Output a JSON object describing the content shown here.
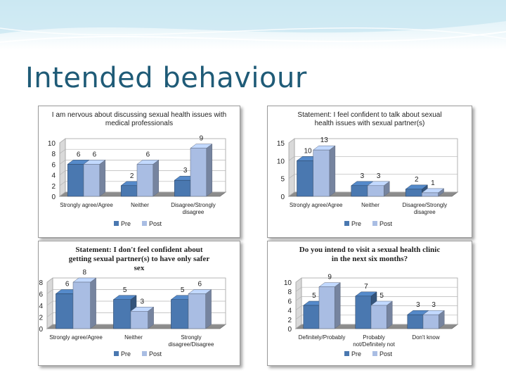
{
  "slide": {
    "title": "Intended behaviour"
  },
  "colors": {
    "pre": "#4a78b0",
    "post": "#a9bde3",
    "wall": "#bfbfbf",
    "floor": "#8c8c8c"
  },
  "chart_data": [
    {
      "type": "bar",
      "title": "I am nervous about discussing sexual health issues with medical professionals",
      "categories": [
        "Strongly agree/Agree",
        "Neither",
        "Disagree/Strongly disagree"
      ],
      "series": [
        {
          "name": "Pre",
          "values": [
            6,
            2,
            3
          ]
        },
        {
          "name": "Post",
          "values": [
            6,
            6,
            9
          ]
        }
      ],
      "ylim": [
        0,
        10
      ],
      "yticks": [
        "0",
        "2",
        "4",
        "6",
        "8",
        "10"
      ],
      "legend": "bottom"
    },
    {
      "type": "bar",
      "title": "Statement: I feel confident to talk about sexual health issues with sexual partner(s)",
      "categories": [
        "Strongly agree/Agree",
        "Neither",
        "Disagree/Strongly disagree"
      ],
      "series": [
        {
          "name": "Pre",
          "values": [
            10,
            3,
            2
          ]
        },
        {
          "name": "Post",
          "values": [
            13,
            3,
            1
          ]
        }
      ],
      "ylim": [
        0,
        15
      ],
      "yticks": [
        "0",
        "5",
        "10",
        "15"
      ],
      "legend": "bottom"
    },
    {
      "type": "bar",
      "title": "Statement: I don't feel confident about getting sexual partner(s) to have only safer sex",
      "categories": [
        "Strongly agree/Agree",
        "Neither",
        "Strongly disagree/Disagree"
      ],
      "series": [
        {
          "name": "Pre",
          "values": [
            6,
            5,
            5
          ]
        },
        {
          "name": "Post",
          "values": [
            8,
            3,
            6
          ]
        }
      ],
      "ylim": [
        0,
        8
      ],
      "yticks": [
        "0",
        "2",
        "4",
        "6",
        "8"
      ],
      "legend": "bottom"
    },
    {
      "type": "bar",
      "title": "Do you intend to visit a sexual health clinic in the next six months?",
      "categories": [
        "Definitely/Probably",
        "Probably not/Definitely not",
        "Don't know"
      ],
      "series": [
        {
          "name": "Pre",
          "values": [
            5,
            7,
            3
          ]
        },
        {
          "name": "Post",
          "values": [
            9,
            5,
            3
          ]
        }
      ],
      "ylim": [
        0,
        10
      ],
      "yticks": [
        "0",
        "2",
        "4",
        "6",
        "8",
        "10"
      ],
      "legend": "bottom"
    }
  ]
}
